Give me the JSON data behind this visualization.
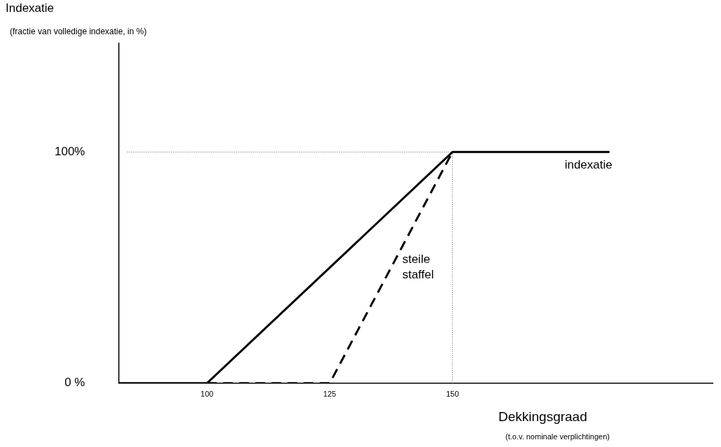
{
  "chart_data": {
    "type": "line",
    "ylabel": "Indexatie",
    "xlabel": "Dekkingsgraad",
    "annotations": [
      "(fractie van volledige indexatie, in %)",
      "(t.o.v. nominale verplichtingen)"
    ],
    "series": [
      {
        "name": "indexatie",
        "color": "#000000",
        "line_style": "solid",
        "x": [
          82,
          100,
          150,
          182
        ],
        "values": [
          0,
          0,
          100,
          100
        ]
      },
      {
        "name": "steile staffel",
        "color": "#000000",
        "line_style": "dashed",
        "x": [
          100,
          125,
          150
        ],
        "values": [
          0,
          0,
          100
        ]
      }
    ],
    "xlim": [
      82,
      203
    ],
    "xticks": [
      100,
      125,
      150
    ],
    "ylim": [
      0,
      147
    ],
    "yticks": [
      {
        "value": 0,
        "label": "0 %"
      },
      {
        "value": 100,
        "label": "100%"
      }
    ],
    "ref_lines": [
      {
        "axis": "y",
        "value": 100,
        "color": "#555555",
        "line_style": "dotted"
      },
      {
        "axis": "x",
        "value": 150,
        "color": "#555555",
        "line_style": "dotted"
      }
    ],
    "grid": false,
    "legend": false,
    "marker": "none"
  }
}
